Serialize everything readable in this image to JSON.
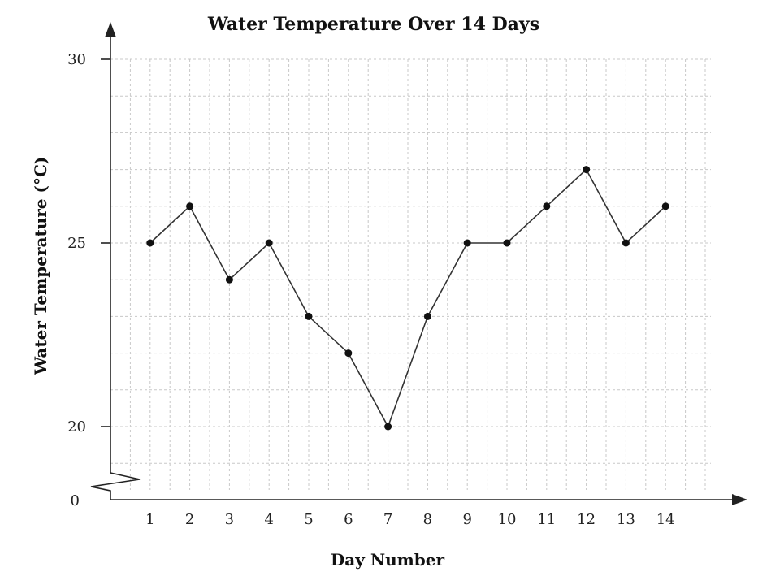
{
  "chart_data": {
    "type": "line",
    "title": "Water Temperature Over 14 Days",
    "xlabel": "Day Number",
    "ylabel": "Water Temperature (°C)",
    "x": [
      1,
      2,
      3,
      4,
      5,
      6,
      7,
      8,
      9,
      10,
      11,
      12,
      13,
      14
    ],
    "series": [
      {
        "values": [
          25,
          26,
          24,
          25,
          23,
          22,
          20,
          23,
          25,
          25,
          26,
          27,
          25,
          26
        ]
      }
    ],
    "y_ticks": [
      20,
      25,
      30
    ],
    "y_origin_label": "0",
    "ylim": [
      18,
      30
    ],
    "xlim": [
      0,
      15
    ],
    "axis_break": true,
    "grid": true,
    "colors": {
      "line": "#333333",
      "point": "#111111",
      "grid": "#c8c8c8"
    }
  }
}
